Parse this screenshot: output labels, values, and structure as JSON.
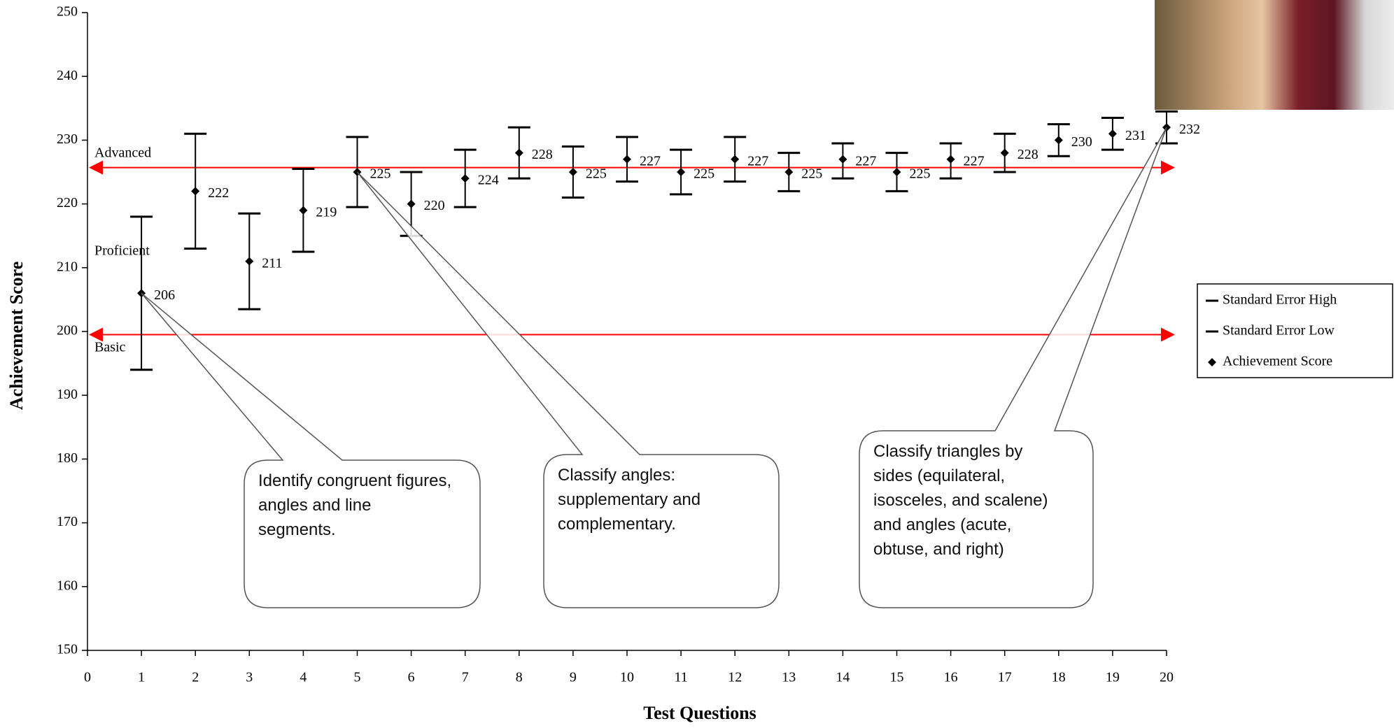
{
  "chart_data": {
    "type": "errorbar",
    "xlabel": "Test Questions",
    "ylabel": "Achievement Score",
    "x": [
      1,
      2,
      3,
      4,
      5,
      6,
      7,
      8,
      9,
      10,
      11,
      12,
      13,
      14,
      15,
      16,
      17,
      18,
      19,
      20
    ],
    "series": [
      {
        "name": "Standard Error High",
        "color": "#000000",
        "values": [
          218,
          231,
          218.5,
          225.5,
          230.5,
          225,
          228.5,
          232,
          229,
          230.5,
          228.5,
          230.5,
          228,
          229.5,
          228,
          229.5,
          231,
          232.5,
          233.5,
          234.5
        ]
      },
      {
        "name": "Standard Error Low",
        "color": "#000000",
        "values": [
          194,
          213,
          203.5,
          212.5,
          219.5,
          215,
          219.5,
          224,
          221,
          223.5,
          221.5,
          223.5,
          222,
          224,
          222,
          224,
          225,
          227.5,
          228.5,
          229.5
        ]
      },
      {
        "name": "Achievement Score",
        "color": "#000000",
        "values": [
          206,
          222,
          211,
          219,
          225,
          220,
          224,
          228,
          225,
          227,
          225,
          227,
          225,
          227,
          225,
          227,
          228,
          230,
          231,
          232
        ]
      }
    ],
    "xlim": [
      0,
      20
    ],
    "xticks": [
      0,
      1,
      2,
      3,
      4,
      5,
      6,
      7,
      8,
      9,
      10,
      11,
      12,
      13,
      14,
      15,
      16,
      17,
      18,
      19,
      20
    ],
    "ylim": [
      150,
      250
    ],
    "yticks": [
      150,
      160,
      170,
      180,
      190,
      200,
      210,
      220,
      230,
      240,
      250
    ],
    "reference_lines": [
      {
        "value": 225.7,
        "color": "#ff0000"
      },
      {
        "value": 199.5,
        "color": "#ff0000"
      }
    ],
    "level_labels": [
      "Advanced",
      "Proficient",
      "Basic"
    ],
    "callouts": [
      {
        "x": 1,
        "text": "Identify congruent figures, angles and line segments."
      },
      {
        "x": 5,
        "text": "Classify angles: supplementary and complementary."
      },
      {
        "x": 20,
        "text": "Classify triangles by sides (equilateral, isosceles, and scalene) and angles (acute, obtuse, and right)"
      }
    ],
    "legend": "right"
  }
}
